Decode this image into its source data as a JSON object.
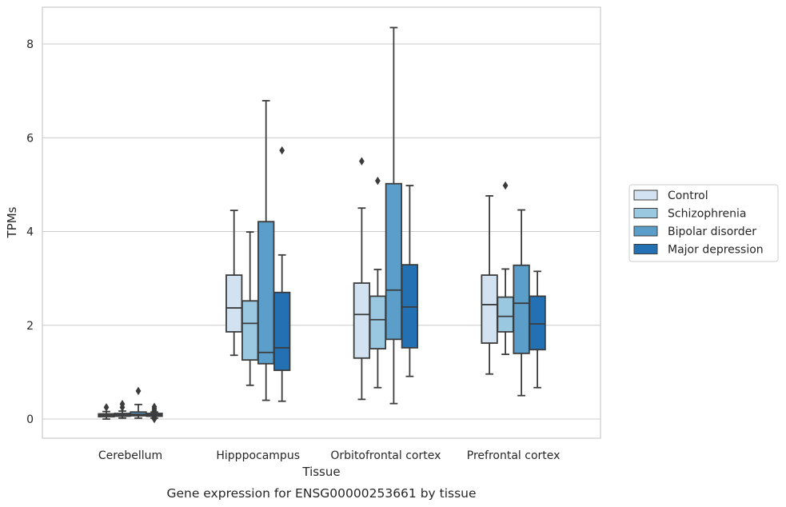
{
  "chart_data": {
    "type": "box",
    "caption": "Gene expression for ENSG00000253661 by tissue",
    "xlabel": "Tissue",
    "ylabel": "TPMs",
    "ylim": [
      -0.4,
      8.8
    ],
    "yticks": [
      0,
      2,
      4,
      6,
      8
    ],
    "categories": [
      "Cerebellum",
      "Hipppocampus",
      "Orbitofrontal cortex",
      "Prefrontal cortex"
    ],
    "grid": "horizontal",
    "legend_position": "right",
    "series": [
      {
        "name": "Control",
        "color": "#d2e2f1",
        "boxes": [
          {
            "whislo": 0.0,
            "q1": 0.05,
            "med": 0.08,
            "q3": 0.11,
            "whishi": 0.16,
            "fliers": [
              0.25
            ]
          },
          {
            "whislo": 1.36,
            "q1": 1.86,
            "med": 2.37,
            "q3": 3.07,
            "whishi": 4.45,
            "fliers": []
          },
          {
            "whislo": 0.42,
            "q1": 1.3,
            "med": 2.23,
            "q3": 2.9,
            "whislo_note": "",
            "whishi": 4.5,
            "fliers": [
              5.5
            ]
          },
          {
            "whislo": 0.96,
            "q1": 1.62,
            "med": 2.44,
            "q3": 3.07,
            "whishi": 4.76,
            "fliers": []
          }
        ]
      },
      {
        "name": "Schizophrenia",
        "color": "#9ac8e0",
        "boxes": [
          {
            "whislo": 0.02,
            "q1": 0.06,
            "med": 0.09,
            "q3": 0.12,
            "whishi": 0.17,
            "fliers": [
              0.25,
              0.32
            ]
          },
          {
            "whislo": 0.72,
            "q1": 1.26,
            "med": 2.04,
            "q3": 2.52,
            "whishi": 3.99,
            "fliers": []
          },
          {
            "whislo": 0.67,
            "q1": 1.5,
            "med": 2.12,
            "q3": 2.62,
            "whishi": 3.19,
            "fliers": [
              5.08
            ]
          },
          {
            "whislo": 1.38,
            "q1": 1.86,
            "med": 2.19,
            "q3": 2.6,
            "whishi": 3.2,
            "fliers": [
              4.98
            ]
          }
        ]
      },
      {
        "name": "Bipolar disorder",
        "color": "#5a9ec9",
        "boxes": [
          {
            "whislo": 0.02,
            "q1": 0.07,
            "med": 0.1,
            "q3": 0.15,
            "whishi": 0.31,
            "fliers": [
              0.6
            ]
          },
          {
            "whislo": 0.4,
            "q1": 1.18,
            "med": 1.42,
            "q3": 4.21,
            "whishi": 6.79,
            "fliers": []
          },
          {
            "whislo": 0.33,
            "q1": 1.7,
            "med": 2.75,
            "q3": 5.02,
            "whishi": 8.35,
            "fliers": []
          },
          {
            "whislo": 0.5,
            "q1": 1.4,
            "med": 2.47,
            "q3": 3.28,
            "whishi": 4.46,
            "fliers": []
          }
        ]
      },
      {
        "name": "Major depression",
        "color": "#2370b3",
        "boxes": [
          {
            "whislo": 0.02,
            "q1": 0.06,
            "med": 0.09,
            "q3": 0.12,
            "whishi": 0.15,
            "fliers": [
              0.0,
              0.05,
              0.18,
              0.22,
              0.26
            ]
          },
          {
            "whislo": 0.38,
            "q1": 1.04,
            "med": 1.52,
            "q3": 2.7,
            "whishi": 3.5,
            "fliers": [
              5.73
            ]
          },
          {
            "whislo": 0.91,
            "q1": 1.52,
            "med": 2.39,
            "q3": 3.29,
            "whishi": 4.98,
            "fliers": []
          },
          {
            "whislo": 0.67,
            "q1": 1.48,
            "med": 2.03,
            "q3": 2.62,
            "whishi": 3.15,
            "fliers": []
          }
        ]
      }
    ]
  }
}
